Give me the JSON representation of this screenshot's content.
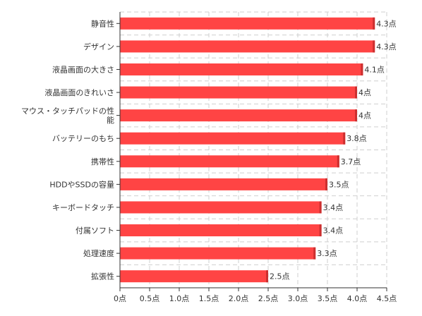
{
  "chart_data": {
    "type": "bar",
    "orientation": "horizontal",
    "categories": [
      "静音性",
      "デザイン",
      "液晶画面の大きさ",
      "液晶画面のきれいさ",
      "マウス・タッチパッドの性能",
      "バッテリーのもち",
      "携帯性",
      "HDDやSSDの容量",
      "キーボードタッチ",
      "付属ソフト",
      "処理速度",
      "拡張性"
    ],
    "category_lines": [
      [
        "静音性"
      ],
      [
        "デザイン"
      ],
      [
        "液晶画面の大きさ"
      ],
      [
        "液晶画面のきれいさ"
      ],
      [
        "マウス・タッチパッドの性",
        "能"
      ],
      [
        "バッテリーのもち"
      ],
      [
        "携帯性"
      ],
      [
        "HDDやSSDの容量"
      ],
      [
        "キーボードタッチ"
      ],
      [
        "付属ソフト"
      ],
      [
        "処理速度"
      ],
      [
        "拡張性"
      ]
    ],
    "values": [
      4.3,
      4.3,
      4.1,
      4,
      4,
      3.8,
      3.7,
      3.5,
      3.4,
      3.4,
      3.3,
      2.5
    ],
    "value_labels": [
      "4.3点",
      "4.3点",
      "4.1点",
      "4点",
      "4点",
      "3.8点",
      "3.7点",
      "3.5点",
      "3.4点",
      "3.4点",
      "3.3点",
      "2.5点"
    ],
    "xlim": [
      0,
      4.5
    ],
    "x_ticks": [
      0,
      0.5,
      1,
      1.5,
      2,
      2.5,
      3,
      3.5,
      4,
      4.5
    ],
    "x_tick_labels": [
      "0点",
      "0.5点",
      "1.0点",
      "1.5点",
      "2.0点",
      "2.5点",
      "3.0点",
      "3.5点",
      "4.0点",
      "4.5点"
    ],
    "grid": true,
    "bar_color": "#ff4444",
    "bar_edge_color": "#cc2f2f",
    "title": "",
    "xlabel": "",
    "ylabel": ""
  }
}
